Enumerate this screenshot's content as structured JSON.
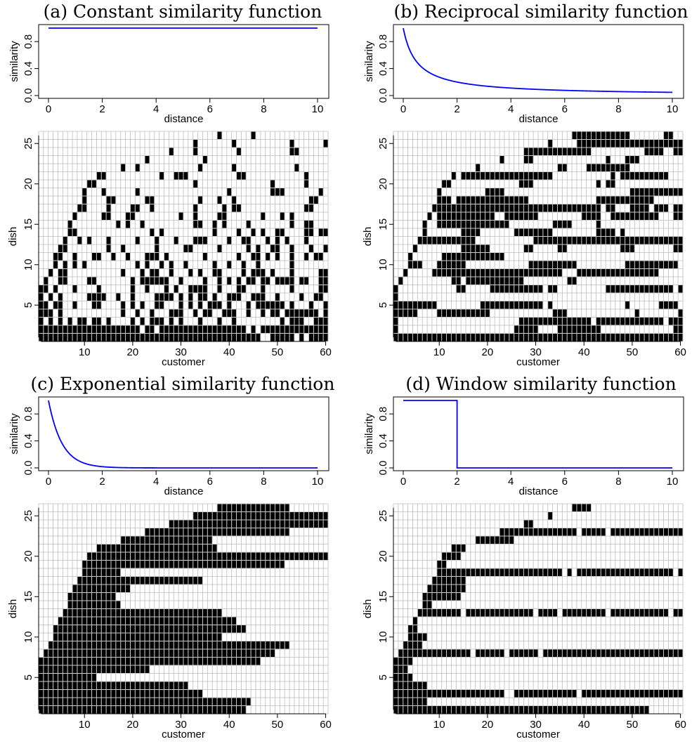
{
  "chart_data": [
    {
      "panel": "a",
      "title": "(a) Constant similarity function",
      "similarity_plot": {
        "type": "line",
        "function": "constant",
        "xlabel": "distance",
        "ylabel": "similarity",
        "xlim": [
          0,
          10
        ],
        "ylim": [
          0,
          1
        ],
        "xticks": [
          "0",
          "2",
          "4",
          "6",
          "8",
          "10"
        ],
        "yticks": [
          "0.0",
          "0.4",
          "0.8"
        ],
        "line_color": "#0000ff"
      },
      "assignment_plot": {
        "type": "heatmap",
        "xlabel": "customer",
        "ylabel": "dish",
        "xticks": [
          "10",
          "20",
          "30",
          "40",
          "50",
          "60"
        ],
        "yticks": [
          "5",
          "10",
          "15",
          "20",
          "25"
        ],
        "n_customers": 60,
        "n_dishes": 26,
        "pattern": "scattered",
        "cell_color": "#000000",
        "grid_color": "#bdbdbd"
      }
    },
    {
      "panel": "b",
      "title": "(b) Reciprocal similarity function",
      "similarity_plot": {
        "type": "line",
        "function": "reciprocal",
        "xlabel": "distance",
        "ylabel": "similarity",
        "xlim": [
          0,
          10
        ],
        "ylim": [
          0,
          1
        ],
        "xticks": [
          "0",
          "2",
          "4",
          "6",
          "8",
          "10"
        ],
        "yticks": [
          "0.0",
          "0.4",
          "0.8"
        ],
        "line_color": "#0000ff"
      },
      "assignment_plot": {
        "type": "heatmap",
        "xlabel": "customer",
        "ylabel": "dish",
        "xticks": [
          "10",
          "20",
          "30",
          "40",
          "50",
          "60"
        ],
        "yticks": [
          "5",
          "10",
          "15",
          "20",
          "25"
        ],
        "n_customers": 60,
        "n_dishes": 26,
        "pattern": "banded",
        "cell_color": "#000000",
        "grid_color": "#bdbdbd"
      }
    },
    {
      "panel": "c",
      "title": "(c) Exponential similarity function",
      "similarity_plot": {
        "type": "line",
        "function": "exponential",
        "xlabel": "distance",
        "ylabel": "similarity",
        "xlim": [
          0,
          10
        ],
        "ylim": [
          0,
          1
        ],
        "xticks": [
          "0",
          "2",
          "4",
          "6",
          "8",
          "10"
        ],
        "yticks": [
          "0.0",
          "0.4",
          "0.8"
        ],
        "line_color": "#0000ff"
      },
      "assignment_plot": {
        "type": "heatmap",
        "xlabel": "customer",
        "ylabel": "dish",
        "xticks": [
          "10",
          "20",
          "30",
          "40",
          "50",
          "60"
        ],
        "yticks": [
          "5",
          "10",
          "15",
          "20",
          "25"
        ],
        "n_customers": 60,
        "n_dishes": 26,
        "pattern": "contiguous",
        "cell_color": "#000000",
        "grid_color": "#bdbdbd"
      }
    },
    {
      "panel": "d",
      "title": "(d) Window similarity function",
      "similarity_plot": {
        "type": "line",
        "function": "window",
        "window_width": 2,
        "xlabel": "distance",
        "ylabel": "similarity",
        "xlim": [
          0,
          10
        ],
        "ylim": [
          0,
          1
        ],
        "xticks": [
          "0",
          "2",
          "4",
          "6",
          "8",
          "10"
        ],
        "yticks": [
          "0.0",
          "0.4",
          "0.8"
        ],
        "line_color": "#0000ff"
      },
      "assignment_plot": {
        "type": "heatmap",
        "xlabel": "customer",
        "ylabel": "dish",
        "xticks": [
          "10",
          "20",
          "30",
          "40",
          "50",
          "60"
        ],
        "yticks": [
          "5",
          "10",
          "15",
          "20",
          "25"
        ],
        "n_customers": 60,
        "n_dishes": 26,
        "pattern": "windowed",
        "cell_color": "#000000",
        "grid_color": "#bdbdbd"
      }
    }
  ]
}
